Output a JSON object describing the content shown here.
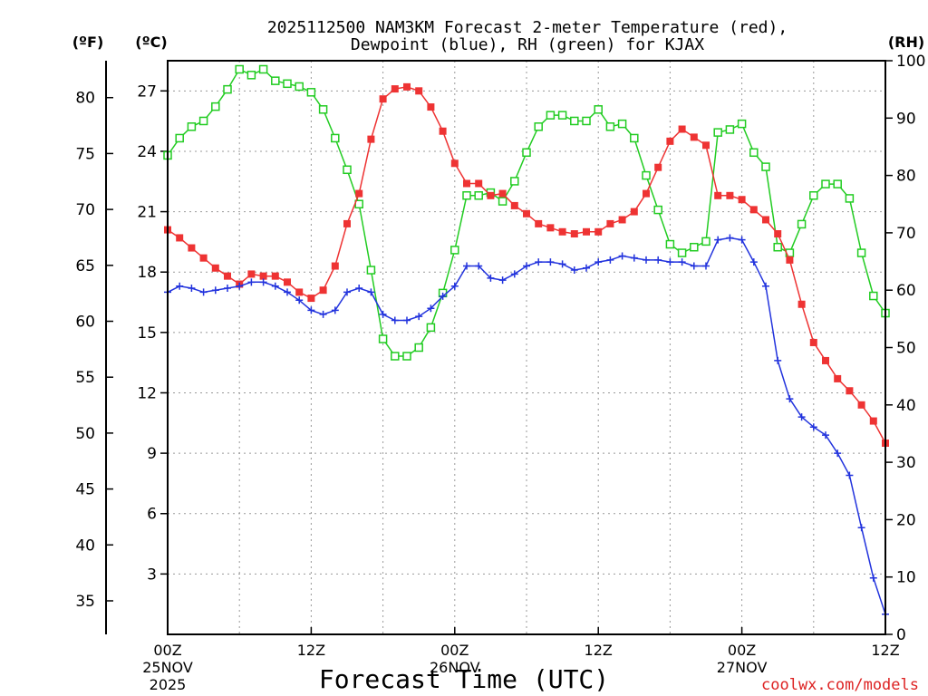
{
  "chart_data": {
    "type": "line",
    "title_line1": "2025112500 NAM3KM Forecast 2-meter Temperature (red),",
    "title_line2": "Dewpoint (blue), RH (green) for KJAX",
    "axis_unit_labels": {
      "fahrenheit": "(ºF)",
      "celsius": "(ºC)",
      "rh": "(RH)"
    },
    "xlabel": "Forecast Time (UTC)",
    "credit": "coolwx.com/models",
    "x_range_hours": [
      0,
      60
    ],
    "x_ticks": [
      {
        "hour": 0,
        "label": "00Z",
        "day": "25NOV",
        "year": "2025"
      },
      {
        "hour": 12,
        "label": "12Z",
        "day": "",
        "year": ""
      },
      {
        "hour": 24,
        "label": "00Z",
        "day": "26NOV",
        "year": ""
      },
      {
        "hour": 36,
        "label": "12Z",
        "day": "",
        "year": ""
      },
      {
        "hour": 48,
        "label": "00Z",
        "day": "27NOV",
        "year": ""
      },
      {
        "hour": 60,
        "label": "12Z",
        "day": "",
        "year": ""
      }
    ],
    "celsius_axis": {
      "min": 0.0,
      "max": 28.5,
      "ticks": [
        3,
        6,
        9,
        12,
        15,
        18,
        21,
        24,
        27
      ]
    },
    "fahrenheit_ticks": [
      35,
      40,
      45,
      50,
      55,
      60,
      65,
      70,
      75,
      80
    ],
    "rh_axis": {
      "min": 0,
      "max": 100,
      "ticks": [
        0,
        10,
        20,
        30,
        40,
        50,
        60,
        70,
        80,
        90,
        100
      ]
    },
    "colors": {
      "temperature": "#ee3333",
      "dewpoint": "#2233dd",
      "rh": "#22cc22",
      "credit": "#dd2222",
      "grid": "#999999"
    },
    "series": [
      {
        "name": "Temperature (red)",
        "axis": "celsius",
        "marker": "filled-square",
        "hours": [
          0,
          1,
          2,
          3,
          4,
          5,
          6,
          7,
          8,
          9,
          10,
          11,
          12,
          13,
          14,
          15,
          16,
          17,
          18,
          19,
          20,
          21,
          22,
          23,
          24,
          25,
          26,
          27,
          28,
          29,
          30,
          31,
          32,
          33,
          34,
          35,
          36,
          37,
          38,
          39,
          40,
          41,
          42,
          43,
          44,
          45,
          46,
          47,
          48,
          49,
          50,
          51,
          52,
          53,
          54,
          55,
          56,
          57,
          58,
          59,
          60
        ],
        "values": [
          20.1,
          19.7,
          19.2,
          18.7,
          18.2,
          17.8,
          17.4,
          17.9,
          17.8,
          17.8,
          17.5,
          17.0,
          16.7,
          17.1,
          18.3,
          20.4,
          21.9,
          24.6,
          26.6,
          27.1,
          27.2,
          27.0,
          26.2,
          25.0,
          23.4,
          22.4,
          22.4,
          21.8,
          21.9,
          21.3,
          20.9,
          20.4,
          20.2,
          20.0,
          19.9,
          20.0,
          20.0,
          20.4,
          20.6,
          21.0,
          21.9,
          23.2,
          24.5,
          25.1,
          24.7,
          24.3,
          21.8,
          21.8,
          21.6,
          21.1,
          20.6,
          19.9,
          18.6,
          16.4,
          14.5,
          13.6,
          12.7,
          12.1,
          11.4,
          10.6,
          9.5
        ]
      },
      {
        "name": "Dewpoint (blue)",
        "axis": "celsius",
        "marker": "plus",
        "hours": [
          0,
          1,
          2,
          3,
          4,
          5,
          6,
          7,
          8,
          9,
          10,
          11,
          12,
          13,
          14,
          15,
          16,
          17,
          18,
          19,
          20,
          21,
          22,
          23,
          24,
          25,
          26,
          27,
          28,
          29,
          30,
          31,
          32,
          33,
          34,
          35,
          36,
          37,
          38,
          39,
          40,
          41,
          42,
          43,
          44,
          45,
          46,
          47,
          48,
          49,
          50,
          51,
          52,
          53,
          54,
          55,
          56,
          57,
          58,
          59,
          60
        ],
        "values": [
          17.0,
          17.3,
          17.2,
          17.0,
          17.1,
          17.2,
          17.3,
          17.5,
          17.5,
          17.3,
          17.0,
          16.6,
          16.1,
          15.9,
          16.1,
          17.0,
          17.2,
          17.0,
          15.9,
          15.6,
          15.6,
          15.8,
          16.2,
          16.8,
          17.3,
          18.3,
          18.3,
          17.7,
          17.6,
          17.9,
          18.3,
          18.5,
          18.5,
          18.4,
          18.1,
          18.2,
          18.5,
          18.6,
          18.8,
          18.7,
          18.6,
          18.6,
          18.5,
          18.5,
          18.3,
          18.3,
          19.6,
          19.7,
          19.6,
          18.5,
          17.3,
          13.6,
          11.7,
          10.8,
          10.3,
          9.9,
          9.0,
          7.9,
          5.3,
          2.8,
          1.0
        ]
      },
      {
        "name": "RH (green)",
        "axis": "rh",
        "marker": "open-square",
        "hours": [
          0,
          1,
          2,
          3,
          4,
          5,
          6,
          7,
          8,
          9,
          10,
          11,
          12,
          13,
          14,
          15,
          16,
          17,
          18,
          19,
          20,
          21,
          22,
          23,
          24,
          25,
          26,
          27,
          28,
          29,
          30,
          31,
          32,
          33,
          34,
          35,
          36,
          37,
          38,
          39,
          40,
          41,
          42,
          43,
          44,
          45,
          46,
          47,
          48,
          49,
          50,
          51,
          52,
          53,
          54,
          55,
          56,
          57,
          58,
          59,
          60
        ],
        "values": [
          83.5,
          86.5,
          88.5,
          89.5,
          92,
          95,
          98.5,
          97.5,
          98.5,
          96.5,
          96,
          95.5,
          94.5,
          91.5,
          86.5,
          81,
          75,
          63.5,
          51.5,
          48.5,
          48.5,
          50,
          53.5,
          59.5,
          67,
          76.5,
          76.5,
          77,
          75.5,
          79,
          84,
          88.5,
          90.5,
          90.5,
          89.5,
          89.5,
          91.5,
          88.5,
          89,
          86.5,
          80,
          74,
          68,
          66.5,
          67.5,
          68.5,
          87.5,
          88,
          89,
          84,
          81.5,
          67.5,
          66.5,
          71.5,
          76.5,
          78.5,
          78.5,
          76,
          66.5,
          59,
          56
        ]
      }
    ]
  }
}
